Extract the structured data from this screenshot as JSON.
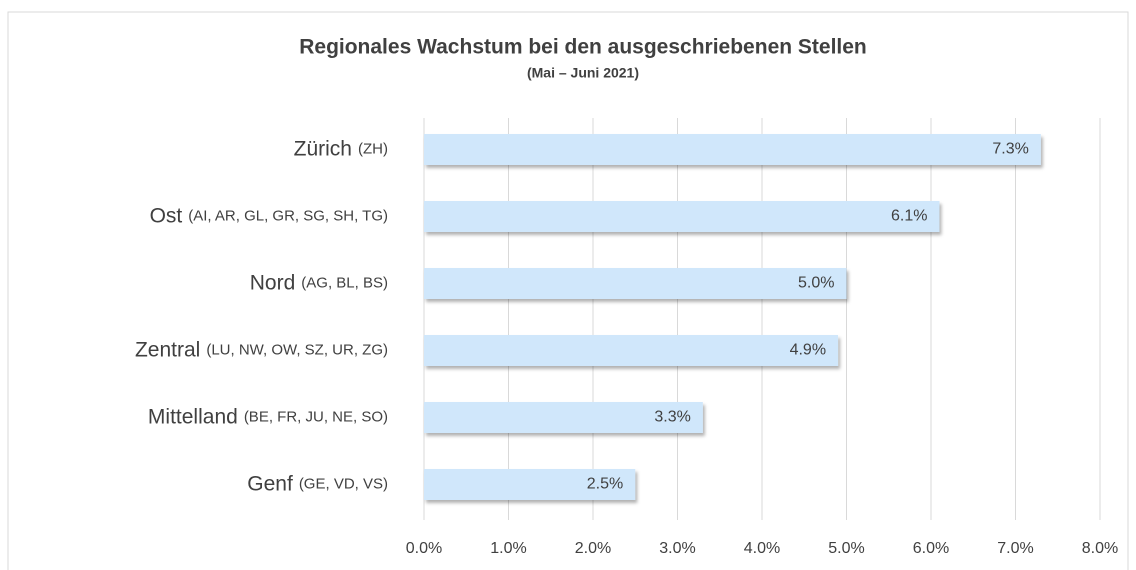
{
  "chart_data": {
    "type": "bar",
    "orientation": "horizontal",
    "title": "Regionales Wachstum bei den ausgeschriebenen Stellen",
    "subtitle": "(Mai – Juni 2021)",
    "categories": [
      "Zürich",
      "Ost",
      "Nord",
      "Zentral",
      "Mittelland",
      "Genf"
    ],
    "category_codes": [
      "(ZH)",
      "(AI, AR, GL, GR, SG, SH, TG)",
      "(AG, BL, BS)",
      "(LU, NW, OW, SZ, UR, ZG)",
      "(BE, FR, JU, NE, SO)",
      "(GE, VD, VS)"
    ],
    "values": [
      7.3,
      6.1,
      5.0,
      4.9,
      3.3,
      2.5
    ],
    "value_labels": [
      "7.3%",
      "6.1%",
      "5.0%",
      "4.9%",
      "3.3%",
      "2.5%"
    ],
    "color": "#d0e7fb",
    "xlim": [
      0,
      8
    ],
    "xticks": [
      {
        "value": 0,
        "label": "0.0%"
      },
      {
        "value": 1,
        "label": "1.0%"
      },
      {
        "value": 2,
        "label": "2.0%"
      },
      {
        "value": 3,
        "label": "3.0%"
      },
      {
        "value": 4,
        "label": "4.0%"
      },
      {
        "value": 5,
        "label": "5.0%"
      },
      {
        "value": 6,
        "label": "6.0%"
      },
      {
        "value": 7,
        "label": "7.0%"
      },
      {
        "value": 8,
        "label": "8.0%"
      }
    ],
    "grid": true
  }
}
